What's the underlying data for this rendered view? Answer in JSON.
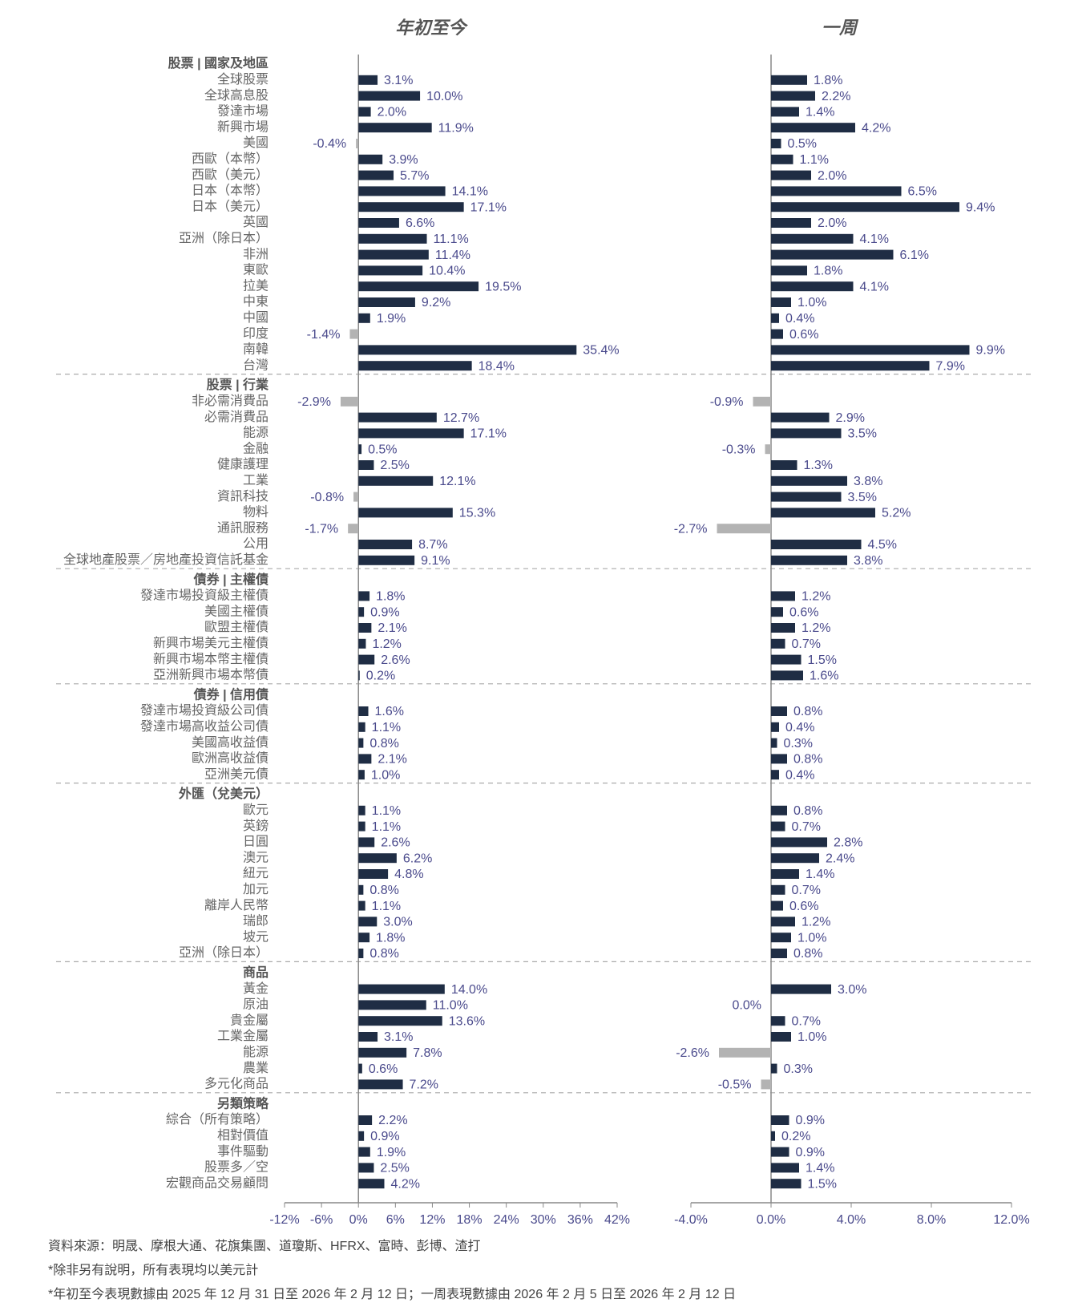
{
  "chart_data": {
    "type": "bar",
    "orientation": "horizontal",
    "groups": [
      {
        "name": "股票 | 國家及地區",
        "categories": [
          "全球股票",
          "全球高息股",
          "發達市場",
          "新興市場",
          "美國",
          "西歐（本幣）",
          "西歐（美元）",
          "日本（本幣）",
          "日本（美元）",
          "英國",
          "亞洲（除日本）",
          "非洲",
          "東歐",
          "拉美",
          "中東",
          "中國",
          "印度",
          "南韓",
          "台灣"
        ]
      },
      {
        "name": "股票 | 行業",
        "categories": [
          "非必需消費品",
          "必需消費品",
          "能源",
          "金融",
          "健康護理",
          "工業",
          "資訊科技",
          "物料",
          "通訊服務",
          "公用",
          "全球地產股票／房地產投資信託基金"
        ]
      },
      {
        "name": "債券 | 主權債",
        "categories": [
          "發達市場投資級主權債",
          "美國主權債",
          "歐盟主權債",
          "新興市場美元主權債",
          "新興市場本幣主權債",
          "亞洲新興市場本幣債"
        ]
      },
      {
        "name": "債券 | 信用債",
        "categories": [
          "發達市場投資級公司債",
          "發達市場高收益公司債",
          "美國高收益債",
          "歐洲高收益債",
          "亞洲美元債"
        ]
      },
      {
        "name": "外匯（兌美元）",
        "categories": [
          "歐元",
          "英鎊",
          "日圓",
          "澳元",
          "紐元",
          "加元",
          "離岸人民幣",
          "瑞郎",
          "坡元",
          "亞洲（除日本）"
        ]
      },
      {
        "name": "商品",
        "categories": [
          "黃金",
          "原油",
          "貴金屬",
          "工業金屬",
          "能源",
          "農業",
          "多元化商品"
        ]
      },
      {
        "name": "另類策略",
        "categories": [
          "綜合（所有策略）",
          "相對價值",
          "事件驅動",
          "股票多／空",
          "宏觀商品交易顧問"
        ]
      }
    ],
    "series": [
      {
        "name": "年初至今",
        "color": "#1f2d44",
        "negative_color": "#b3b3b3",
        "xlim": [
          -12,
          42
        ],
        "xticks": [
          {
            "value": -12,
            "label": "-12%"
          },
          {
            "value": -6,
            "label": "-6%"
          },
          {
            "value": 0,
            "label": "0%"
          },
          {
            "value": 6,
            "label": "6%"
          },
          {
            "value": 12,
            "label": "12%"
          },
          {
            "value": 18,
            "label": "18%"
          },
          {
            "value": 24,
            "label": "24%"
          },
          {
            "value": 30,
            "label": "30%"
          },
          {
            "value": 36,
            "label": "36%"
          },
          {
            "value": 42,
            "label": "42%"
          }
        ],
        "values": [
          [
            3.1,
            10.0,
            2.0,
            11.9,
            -0.4,
            3.9,
            5.7,
            14.1,
            17.1,
            6.6,
            11.1,
            11.4,
            10.4,
            19.5,
            9.2,
            1.9,
            -1.4,
            35.4,
            18.4
          ],
          [
            -2.9,
            12.7,
            17.1,
            0.5,
            2.5,
            12.1,
            -0.8,
            15.3,
            -1.7,
            8.7,
            9.1
          ],
          [
            1.8,
            0.9,
            2.1,
            1.2,
            2.6,
            0.2
          ],
          [
            1.6,
            1.1,
            0.8,
            2.1,
            1.0
          ],
          [
            1.1,
            1.1,
            2.6,
            6.2,
            4.8,
            0.8,
            1.1,
            3.0,
            1.8,
            0.8
          ],
          [
            14.0,
            11.0,
            13.6,
            3.1,
            7.8,
            0.6,
            7.2
          ],
          [
            2.2,
            0.9,
            1.9,
            2.5,
            4.2
          ]
        ],
        "value_labels": [
          [
            "3.1%",
            "10.0%",
            "2.0%",
            "11.9%",
            "-0.4%",
            "3.9%",
            "5.7%",
            "14.1%",
            "17.1%",
            "6.6%",
            "11.1%",
            "11.4%",
            "10.4%",
            "19.5%",
            "9.2%",
            "1.9%",
            "-1.4%",
            "35.4%",
            "18.4%"
          ],
          [
            "-2.9%",
            "12.7%",
            "17.1%",
            "0.5%",
            "2.5%",
            "12.1%",
            "-0.8%",
            "15.3%",
            "-1.7%",
            "8.7%",
            "9.1%"
          ],
          [
            "1.8%",
            "0.9%",
            "2.1%",
            "1.2%",
            "2.6%",
            "0.2%"
          ],
          [
            "1.6%",
            "1.1%",
            "0.8%",
            "2.1%",
            "1.0%"
          ],
          [
            "1.1%",
            "1.1%",
            "2.6%",
            "6.2%",
            "4.8%",
            "0.8%",
            "1.1%",
            "3.0%",
            "1.8%",
            "0.8%"
          ],
          [
            "14.0%",
            "11.0%",
            "13.6%",
            "3.1%",
            "7.8%",
            "0.6%",
            "7.2%"
          ],
          [
            "2.2%",
            "0.9%",
            "1.9%",
            "2.5%",
            "4.2%"
          ]
        ]
      },
      {
        "name": "一周",
        "color": "#1f2d44",
        "negative_color": "#b3b3b3",
        "xlim": [
          -4,
          12
        ],
        "xticks": [
          {
            "value": -4,
            "label": "-4.0%"
          },
          {
            "value": 0,
            "label": "0.0%"
          },
          {
            "value": 4,
            "label": "4.0%"
          },
          {
            "value": 8,
            "label": "8.0%"
          },
          {
            "value": 12,
            "label": "12.0%"
          }
        ],
        "values": [
          [
            1.8,
            2.2,
            1.4,
            4.2,
            0.5,
            1.1,
            2.0,
            6.5,
            9.4,
            2.0,
            4.1,
            6.1,
            1.8,
            4.1,
            1.0,
            0.4,
            0.6,
            9.9,
            7.9
          ],
          [
            -0.9,
            2.9,
            3.5,
            -0.3,
            1.3,
            3.8,
            3.5,
            5.2,
            -2.7,
            4.5,
            3.8
          ],
          [
            1.2,
            0.6,
            1.2,
            0.7,
            1.5,
            1.6
          ],
          [
            0.8,
            0.4,
            0.3,
            0.8,
            0.4
          ],
          [
            0.8,
            0.7,
            2.8,
            2.4,
            1.4,
            0.7,
            0.6,
            1.2,
            1.0,
            0.8
          ],
          [
            3.0,
            0.0,
            0.7,
            1.0,
            -2.6,
            0.3,
            -0.5
          ],
          [
            0.9,
            0.2,
            0.9,
            1.4,
            1.5
          ]
        ],
        "value_labels": [
          [
            "1.8%",
            "2.2%",
            "1.4%",
            "4.2%",
            "0.5%",
            "1.1%",
            "2.0%",
            "6.5%",
            "9.4%",
            "2.0%",
            "4.1%",
            "6.1%",
            "1.8%",
            "4.1%",
            "1.0%",
            "0.4%",
            "0.6%",
            "9.9%",
            "7.9%"
          ],
          [
            "-0.9%",
            "2.9%",
            "3.5%",
            "-0.3%",
            "1.3%",
            "3.8%",
            "3.5%",
            "5.2%",
            "-2.7%",
            "4.5%",
            "3.8%"
          ],
          [
            "1.2%",
            "0.6%",
            "1.2%",
            "0.7%",
            "1.5%",
            "1.6%"
          ],
          [
            "0.8%",
            "0.4%",
            "0.3%",
            "0.8%",
            "0.4%"
          ],
          [
            "0.8%",
            "0.7%",
            "2.8%",
            "2.4%",
            "1.4%",
            "0.7%",
            "0.6%",
            "1.2%",
            "1.0%",
            "0.8%"
          ],
          [
            "3.0%",
            "0.0%",
            "0.7%",
            "1.0%",
            "-2.6%",
            "0.3%",
            "-0.5%"
          ],
          [
            "0.9%",
            "0.2%",
            "0.9%",
            "1.4%",
            "1.5%"
          ]
        ]
      }
    ]
  },
  "notes": [
    "資料來源：明晟、摩根大通、花旗集團、道瓊斯、HFRX、富時、彭博、渣打",
    "*除非另有說明，所有表現均以美元計",
    "*年初至今表現數據由 2025 年 12 月 31 日至 2026 年 2 月 12 日；一周表現數據由 2026 年 2 月 5 日至 2026 年 2 月 12 日"
  ]
}
